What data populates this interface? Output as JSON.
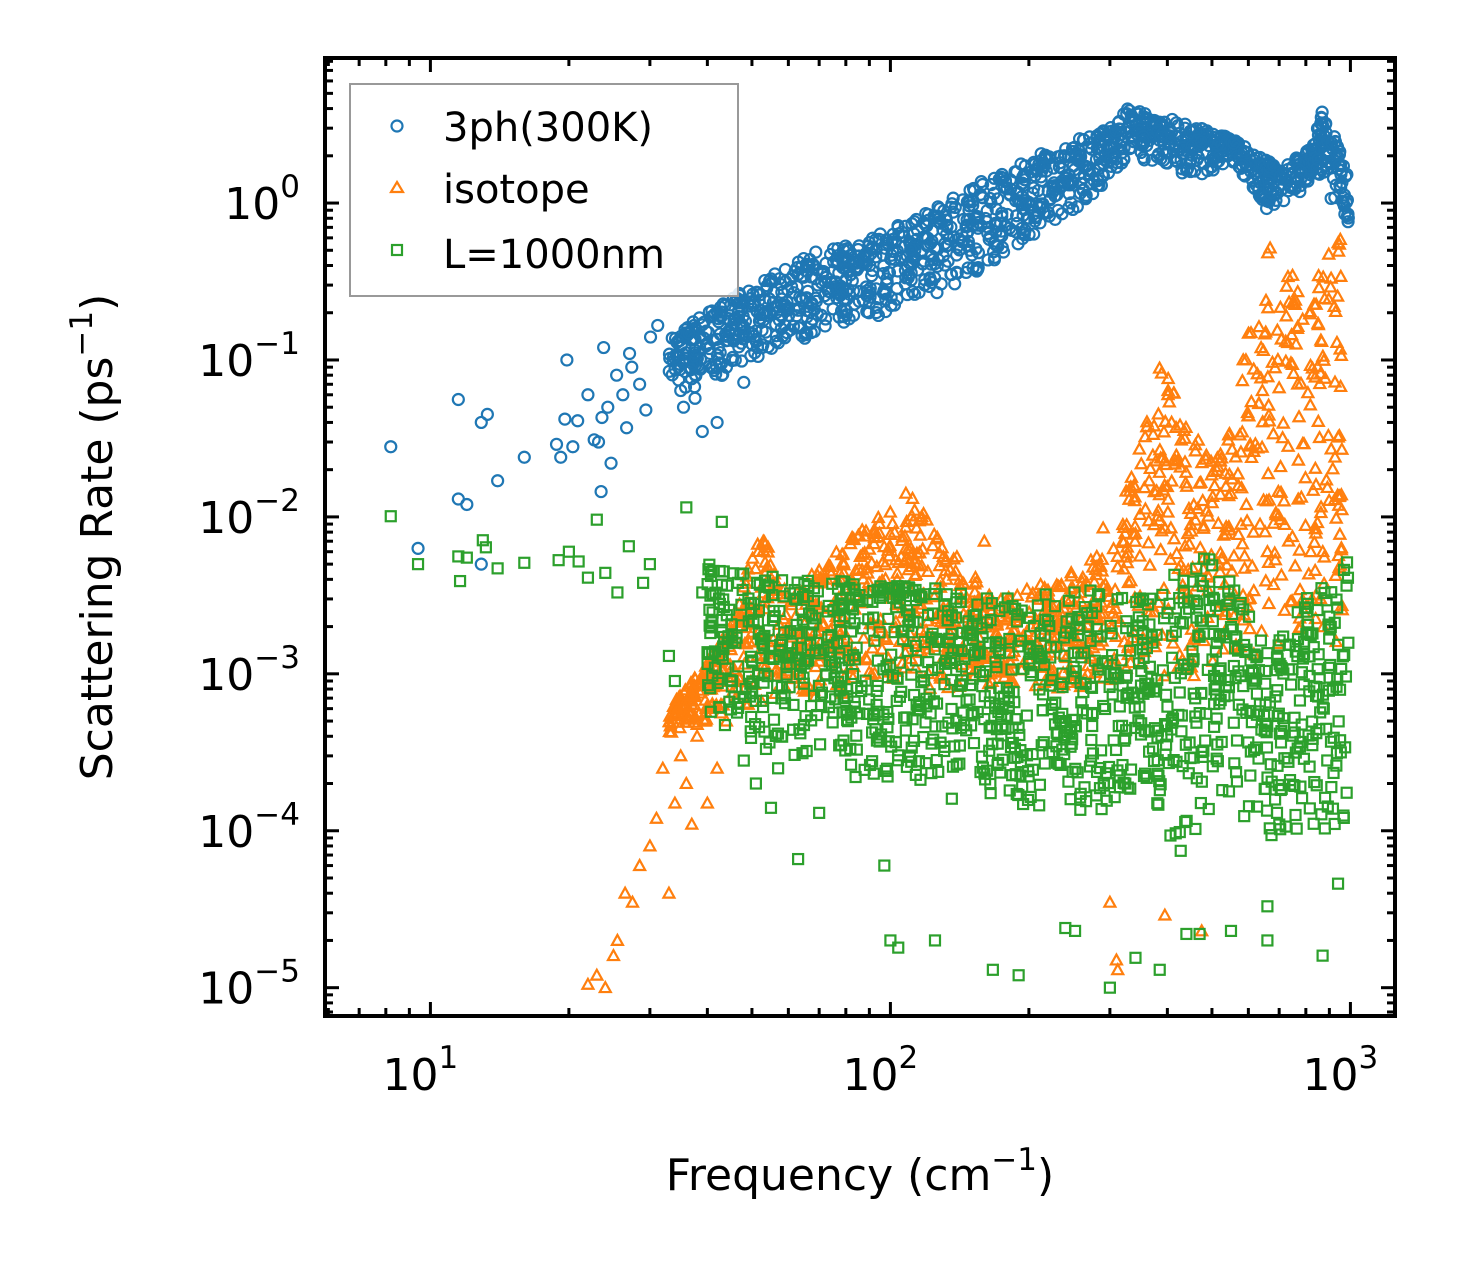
{
  "chart_data": {
    "type": "scatter",
    "title": "",
    "xlabel": "Frequency (cm",
    "xlabel_sup": "−1",
    "xlabel_tail": ")",
    "ylabel": "Scattering Rate (ps",
    "ylabel_sup": "−1",
    "ylabel_tail": ")",
    "xscale": "log",
    "yscale": "log",
    "xlim": [
      5.9,
      1250
    ],
    "ylim": [
      6.6e-06,
      8.4
    ],
    "grid": false,
    "tick_direction": "in",
    "mirror_ticks": true,
    "x_ticks": [
      {
        "value": 10,
        "base": "10",
        "exp": "1"
      },
      {
        "value": 100,
        "base": "10",
        "exp": "2"
      },
      {
        "value": 1000,
        "base": "10",
        "exp": "3"
      }
    ],
    "y_ticks": [
      {
        "value": 1,
        "base": "10",
        "exp": "0"
      },
      {
        "value": 0.1,
        "base": "10",
        "exp": "−1"
      },
      {
        "value": 0.01,
        "base": "10",
        "exp": "−2"
      },
      {
        "value": 0.001,
        "base": "10",
        "exp": "−3"
      },
      {
        "value": 0.0001,
        "base": "10",
        "exp": "−4"
      },
      {
        "value": 1e-05,
        "base": "10",
        "exp": "−5"
      }
    ],
    "legend": {
      "position": "top-left",
      "entries": [
        {
          "label": "3ph(300K)",
          "marker": "circle",
          "color": "#1f77b4"
        },
        {
          "label": "isotope",
          "marker": "triangle",
          "color": "#ff7f0e"
        },
        {
          "label": "L=1000nm",
          "marker": "square",
          "color": "#2ca02c"
        }
      ]
    },
    "series": [
      {
        "name": "3ph(300K)",
        "marker": "circle",
        "color": "#1f77b4",
        "scattered_points": [
          [
            8.2,
            0.028
          ],
          [
            9.4,
            0.0063
          ],
          [
            11.5,
            0.056
          ],
          [
            11.5,
            0.013
          ],
          [
            12,
            0.012
          ],
          [
            12.9,
            0.04
          ],
          [
            13.3,
            0.045
          ],
          [
            12.9,
            0.005
          ],
          [
            14,
            0.017
          ],
          [
            16,
            0.024
          ],
          [
            18.8,
            0.029
          ],
          [
            19.2,
            0.024
          ],
          [
            19.6,
            0.042
          ],
          [
            19.8,
            0.1
          ],
          [
            20.4,
            0.028
          ],
          [
            20.9,
            0.041
          ],
          [
            22,
            0.06
          ],
          [
            22.7,
            0.031
          ],
          [
            23.2,
            0.03
          ],
          [
            23.6,
            0.043
          ],
          [
            23.8,
            0.12
          ],
          [
            24.3,
            0.05
          ],
          [
            25.4,
            0.08
          ],
          [
            26.2,
            0.06
          ],
          [
            26.7,
            0.037
          ],
          [
            27.1,
            0.11
          ],
          [
            27.4,
            0.09
          ],
          [
            28.5,
            0.07
          ],
          [
            29.4,
            0.048
          ],
          [
            30.1,
            0.14
          ],
          [
            31.2,
            0.166
          ],
          [
            24.7,
            0.022
          ],
          [
            23.5,
            0.0145
          ],
          [
            35.5,
            0.05
          ],
          [
            37.6,
            0.057
          ],
          [
            39,
            0.035
          ],
          [
            42,
            0.04
          ],
          [
            44,
            0.09
          ],
          [
            46,
            0.1
          ],
          [
            58,
            0.19
          ],
          [
            48,
            0.072
          ]
        ],
        "envelope": [
          [
            33,
            0.06,
            0.14
          ],
          [
            40,
            0.07,
            0.2
          ],
          [
            50,
            0.1,
            0.3
          ],
          [
            60,
            0.12,
            0.4
          ],
          [
            70,
            0.15,
            0.5
          ],
          [
            80,
            0.17,
            0.55
          ],
          [
            100,
            0.2,
            0.7
          ],
          [
            120,
            0.25,
            0.9
          ],
          [
            150,
            0.33,
            1.3
          ],
          [
            180,
            0.5,
            1.6
          ],
          [
            200,
            0.6,
            2.0
          ],
          [
            250,
            0.9,
            2.5
          ],
          [
            300,
            1.4,
            3.0
          ],
          [
            330,
            2.0,
            4.2
          ],
          [
            380,
            1.7,
            3.6
          ],
          [
            450,
            1.4,
            3.2
          ],
          [
            500,
            1.6,
            2.8
          ],
          [
            550,
            1.9,
            2.6
          ],
          [
            660,
            0.9,
            1.9
          ],
          [
            700,
            0.9,
            1.6
          ],
          [
            830,
            1.4,
            2.4
          ],
          [
            870,
            1.3,
            4.0
          ],
          [
            930,
            0.9,
            2.6
          ],
          [
            990,
            0.75,
            1.5
          ]
        ]
      },
      {
        "name": "isotope",
        "marker": "triangle",
        "color": "#ff7f0e",
        "scattered_points": [
          [
            22,
            1.05e-05
          ],
          [
            23,
            1.2e-05
          ],
          [
            24,
            1e-05
          ],
          [
            25,
            1.6e-05
          ],
          [
            25.5,
            2e-05
          ],
          [
            26.5,
            4e-05
          ],
          [
            27.5,
            3.5e-05
          ],
          [
            28.5,
            6e-05
          ],
          [
            30,
            8e-05
          ],
          [
            31,
            0.00012
          ],
          [
            32,
            0.00025
          ],
          [
            33,
            4e-05
          ],
          [
            34,
            0.00015
          ],
          [
            35,
            0.0003
          ],
          [
            36,
            0.0002
          ],
          [
            37,
            0.00011
          ],
          [
            38,
            0.0004
          ],
          [
            40,
            0.00015
          ],
          [
            42,
            0.00025
          ],
          [
            44,
            0.0005
          ],
          [
            300,
            3.5e-05
          ],
          [
            310,
            1.5e-05
          ],
          [
            312,
            1.3e-05
          ],
          [
            395,
            2.9e-05
          ],
          [
            475,
            2.3e-05
          ],
          [
            660,
            0.006
          ],
          [
            665,
            0.0028
          ],
          [
            820,
            0.006
          ],
          [
            290,
            0.0085
          ],
          [
            160,
            0.007
          ]
        ],
        "envelope": [
          [
            33,
            0.0004,
            0.0006
          ],
          [
            40,
            0.0005,
            0.0012
          ],
          [
            45,
            0.0006,
            0.002
          ],
          [
            52,
            0.0006,
            0.009
          ],
          [
            60,
            0.0007,
            0.003
          ],
          [
            75,
            0.0007,
            0.006
          ],
          [
            90,
            0.0008,
            0.009
          ],
          [
            110,
            0.0008,
            0.015
          ],
          [
            130,
            0.0008,
            0.007
          ],
          [
            170,
            0.0008,
            0.003
          ],
          [
            230,
            0.0008,
            0.004
          ],
          [
            275,
            0.0008,
            0.0055
          ],
          [
            300,
            0.0009,
            0.0065
          ],
          [
            400,
            0.0009,
            0.14
          ],
          [
            430,
            0.0009,
            0.04
          ],
          [
            500,
            0.001,
            0.025
          ],
          [
            540,
            0.001,
            0.03
          ],
          [
            660,
            0.0014,
            0.63
          ],
          [
            810,
            0.0015,
            0.25
          ],
          [
            860,
            0.0015,
            0.5
          ],
          [
            930,
            0.0015,
            0.5
          ],
          [
            960,
            0.0015,
            0.7
          ]
        ]
      },
      {
        "name": "L=1000nm",
        "marker": "square",
        "color": "#2ca02c",
        "scattered_points": [
          [
            8.2,
            0.0101
          ],
          [
            9.4,
            0.005
          ],
          [
            11.5,
            0.0056
          ],
          [
            11.6,
            0.0039
          ],
          [
            12,
            0.0055
          ],
          [
            13,
            0.0071
          ],
          [
            13.2,
            0.0064
          ],
          [
            14,
            0.0047
          ],
          [
            16,
            0.0051
          ],
          [
            19,
            0.0053
          ],
          [
            20,
            0.006
          ],
          [
            21,
            0.0052
          ],
          [
            22,
            0.0041
          ],
          [
            23,
            0.0096
          ],
          [
            24,
            0.0044
          ],
          [
            25.5,
            0.0033
          ],
          [
            27,
            0.0065
          ],
          [
            29,
            0.0038
          ],
          [
            30,
            0.005
          ],
          [
            33,
            0.0013
          ],
          [
            34,
            0.0009
          ],
          [
            36,
            0.0115
          ],
          [
            39,
            0.0033
          ],
          [
            43,
            0.0093
          ],
          [
            48,
            0.00028
          ],
          [
            51,
            0.0002
          ],
          [
            55,
            0.00014
          ],
          [
            57,
            0.00025
          ],
          [
            63,
            6.6e-05
          ],
          [
            70,
            0.00013
          ],
          [
            84,
            0.00022
          ],
          [
            97,
            6e-05
          ],
          [
            100,
            2e-05
          ],
          [
            104,
            1.8e-05
          ],
          [
            125,
            2e-05
          ],
          [
            136,
            0.00016
          ],
          [
            167,
            1.3e-05
          ],
          [
            190,
            1.2e-05
          ],
          [
            240,
            2.4e-05
          ],
          [
            252,
            2.3e-05
          ],
          [
            300,
            1e-05
          ],
          [
            341,
            1.55e-05
          ],
          [
            385,
            1.3e-05
          ],
          [
            440,
            2.2e-05
          ],
          [
            470,
            2.2e-05
          ],
          [
            550,
            2.3e-05
          ],
          [
            660,
            3.3e-05
          ],
          [
            660,
            2e-05
          ],
          [
            870,
            1.6e-05
          ],
          [
            940,
            4.6e-05
          ]
        ],
        "envelope": [
          [
            40,
            0.0006,
            0.005
          ],
          [
            50,
            0.0003,
            0.0045
          ],
          [
            60,
            0.0003,
            0.004
          ],
          [
            80,
            0.00025,
            0.004
          ],
          [
            100,
            0.0002,
            0.0038
          ],
          [
            130,
            0.0002,
            0.0035
          ],
          [
            170,
            0.00015,
            0.003
          ],
          [
            220,
            0.00013,
            0.0035
          ],
          [
            300,
            0.00012,
            0.0035
          ],
          [
            360,
            0.0002,
            0.003
          ],
          [
            400,
            5e-05,
            0.004
          ],
          [
            450,
            8e-05,
            0.005
          ],
          [
            480,
            0.0001,
            0.0068
          ],
          [
            540,
            0.00015,
            0.0045
          ],
          [
            660,
            7e-05,
            0.0014
          ],
          [
            830,
            0.0001,
            0.0035
          ],
          [
            900,
            0.0001,
            0.004
          ],
          [
            990,
            0.00012,
            0.0058
          ]
        ]
      }
    ]
  }
}
